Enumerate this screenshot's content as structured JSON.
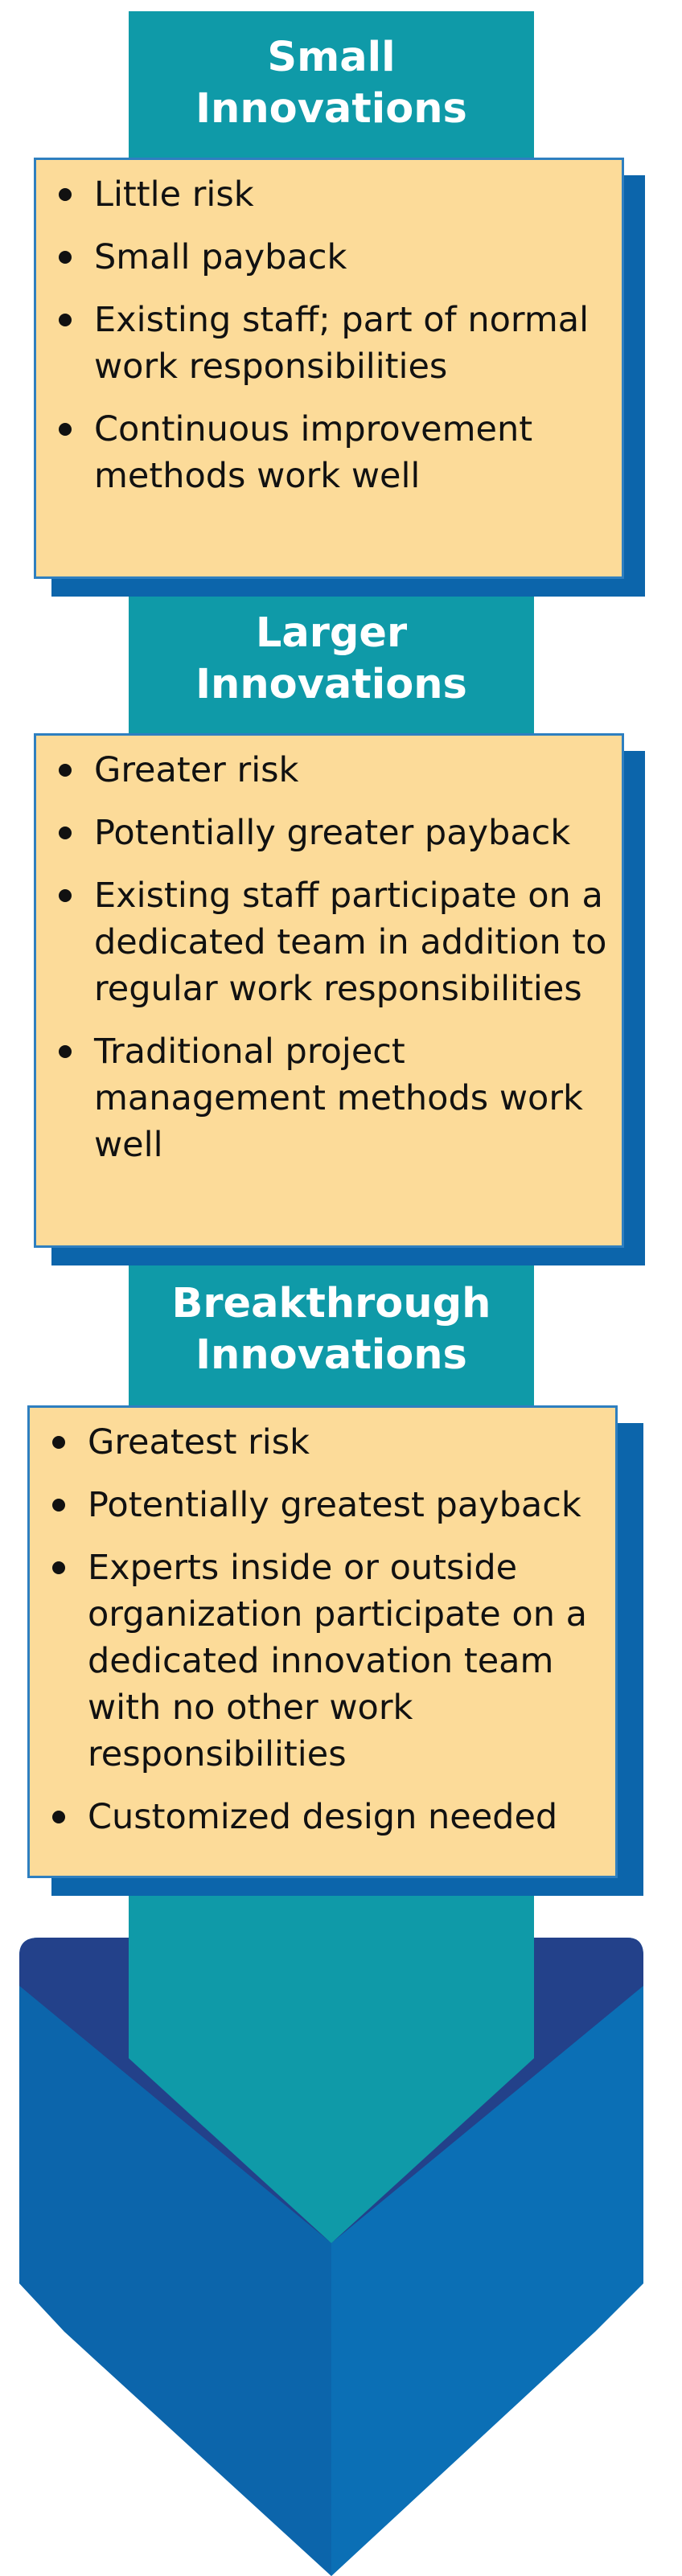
{
  "stages": [
    {
      "title_line1": "Small",
      "title_line2": "Innovations",
      "bullets": [
        "Little risk",
        "Small payback",
        "Existing staff; part of normal work responsibilities",
        "Continuous improvement methods work well"
      ]
    },
    {
      "title_line1": "Larger",
      "title_line2": "Innovations",
      "bullets": [
        "Greater risk",
        "Potentially greater payback",
        "Existing staff participate on a dedicated team in addition to regular work responsibilities",
        "Traditional project management methods work well"
      ]
    },
    {
      "title_line1": "Breakthrough",
      "title_line2": "Innovations",
      "bullets": [
        "Greatest risk",
        "Potentially greatest payback",
        "Experts inside or outside organization participate on a dedicated innovation team with no other work responsibilities",
        "Customized design needed"
      ]
    }
  ],
  "colors": {
    "arrow_teal": "#0f9aa8",
    "card_fill": "#fcdb99",
    "card_border": "#2e7fc0",
    "card_shadow": "#0c65ab",
    "chevron_dark": "#23418a",
    "chevron_mid": "#0c65ab",
    "chevron_light": "#0b6fb5"
  }
}
